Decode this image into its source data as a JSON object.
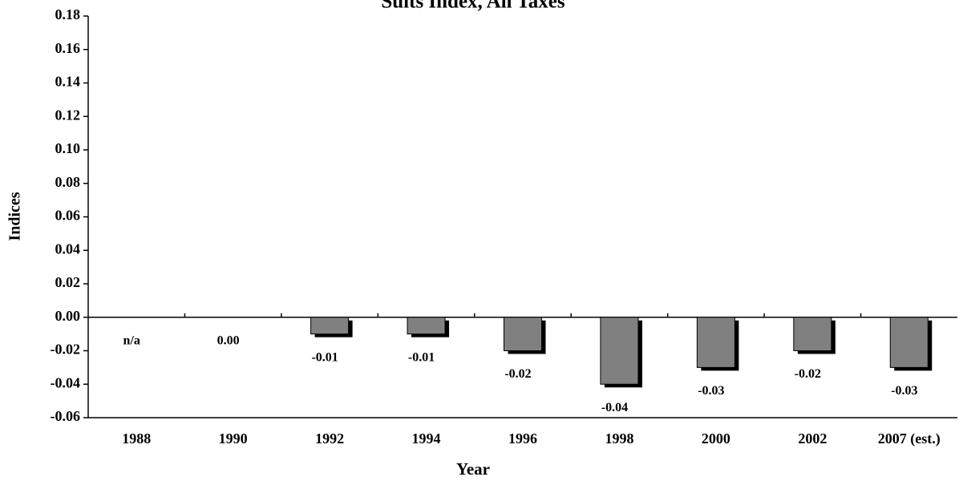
{
  "chart_data": {
    "type": "bar",
    "title": "Suits Index, All Taxes",
    "x_label": "Year",
    "y_label": "Indices",
    "categories": [
      "1988",
      "1990",
      "1992",
      "1994",
      "1996",
      "1998",
      "2000",
      "2002",
      "2007 (est.)"
    ],
    "values": [
      null,
      0,
      -0.01,
      -0.01,
      -0.02,
      -0.04,
      -0.03,
      -0.02,
      -0.03
    ],
    "value_labels": [
      "n/a",
      "0.00",
      "-0.01",
      "-0.01",
      "-0.02",
      "-0.04",
      "-0.03",
      "-0.02",
      "-0.03"
    ],
    "color": "#808080",
    "ylim": [
      -0.06,
      0.18
    ],
    "yticks": [
      -0.06,
      -0.04,
      -0.02,
      {
        "value": 0,
        "label": "0.00"
      },
      0.02,
      0.04,
      0.06,
      0.08,
      {
        "value": 0.1,
        "label": "0.10"
      },
      0.12,
      0.14,
      0.16,
      0.18
    ]
  }
}
